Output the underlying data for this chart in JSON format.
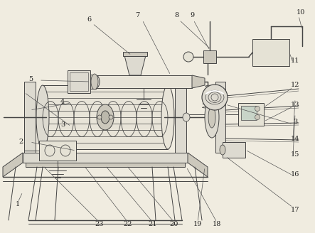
{
  "figsize": [
    4.43,
    3.28
  ],
  "dpi": 100,
  "bg_color": "#f0ece0",
  "line_color": "#444444",
  "line_width": 0.7
}
